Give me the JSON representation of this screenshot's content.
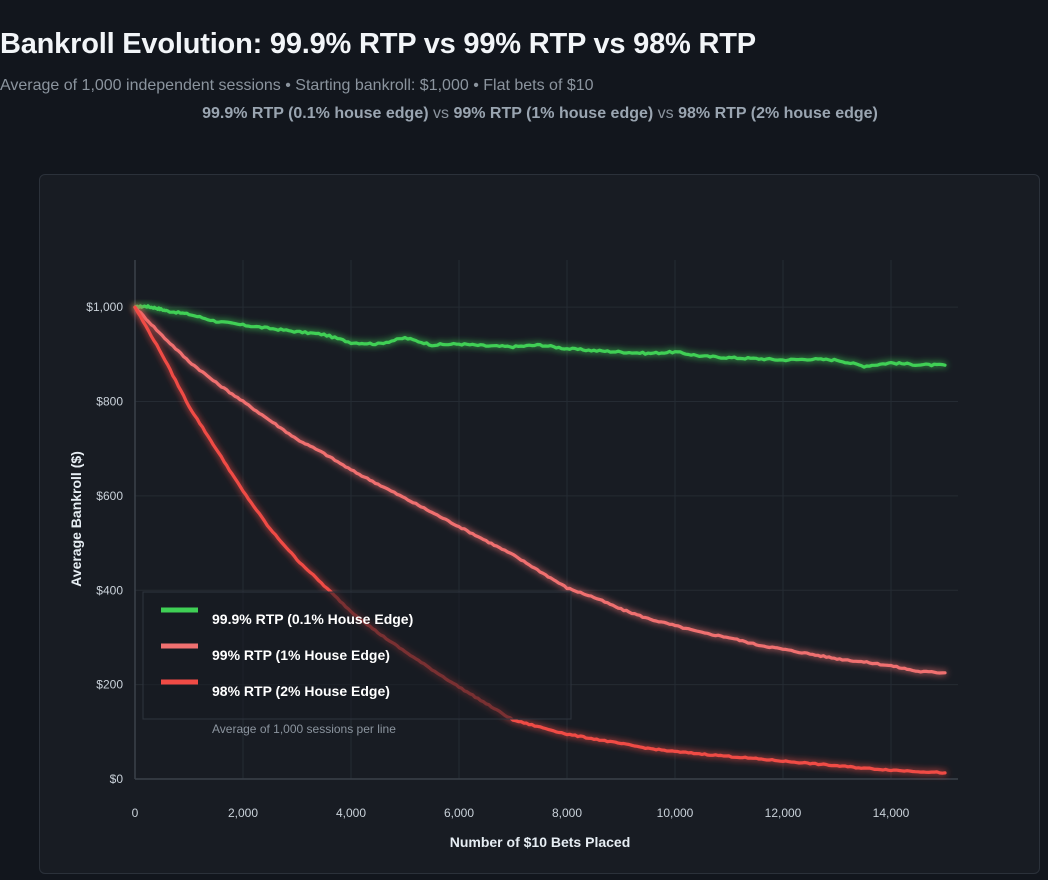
{
  "title": "Bankroll Evolution: 99.9% RTP vs 99% RTP vs 98% RTP",
  "subtitle": "Average of 1,000 independent sessions • Starting bankroll: $1,000 • Flat bets of $10",
  "comparison": {
    "a_bold": "99.9% RTP (0.1% house edge)",
    "sep1": " vs ",
    "b_bold": "99% RTP (1% house edge)",
    "sep2": " vs ",
    "c_bold": "98% RTP (2% house edge)"
  },
  "chart_data": {
    "type": "line",
    "xlabel": "Number of $10 Bets Placed",
    "ylabel": "Average Bankroll ($)",
    "xlim": [
      0,
      15000
    ],
    "ylim": [
      0,
      1100
    ],
    "x_ticks": [
      0,
      2000,
      4000,
      6000,
      8000,
      10000,
      12000,
      14000
    ],
    "x_tick_labels": [
      "0",
      "2,000",
      "4,000",
      "6,000",
      "8,000",
      "10,000",
      "12,000",
      "14,000"
    ],
    "y_ticks": [
      0,
      200,
      400,
      600,
      800,
      1000
    ],
    "y_tick_labels": [
      "$0",
      "$200",
      "$400",
      "$600",
      "$800",
      "$1,000"
    ],
    "grid": true,
    "legend_placement": "bottom-left",
    "legend_note": "Average of 1,000 sessions per line",
    "series": [
      {
        "name": "99.9% RTP  (0.1% House Edge)",
        "color": "#3fcf55",
        "x": [
          0,
          200,
          400,
          600,
          1000,
          1500,
          2000,
          2500,
          3000,
          3500,
          4000,
          4500,
          5000,
          5500,
          6000,
          6500,
          7000,
          7500,
          8000,
          8500,
          9000,
          9500,
          10000,
          10500,
          11000,
          11500,
          12000,
          12500,
          13000,
          13500,
          14000,
          14500,
          15000
        ],
        "y": [
          1000,
          1002,
          998,
          992,
          985,
          970,
          962,
          955,
          948,
          942,
          925,
          922,
          935,
          920,
          922,
          918,
          916,
          920,
          912,
          908,
          905,
          902,
          905,
          896,
          893,
          891,
          888,
          890,
          888,
          875,
          882,
          878,
          877
        ]
      },
      {
        "name": "99% RTP    (1% House Edge)",
        "color": "#f07070",
        "x": [
          0,
          500,
          1000,
          1500,
          2000,
          2500,
          3000,
          3500,
          4000,
          4500,
          5000,
          5500,
          6000,
          6500,
          7000,
          7500,
          8000,
          8500,
          9000,
          9500,
          10000,
          10500,
          11000,
          11500,
          12000,
          12500,
          13000,
          13500,
          14000,
          14500,
          15000
        ],
        "y": [
          1000,
          940,
          885,
          840,
          800,
          760,
          720,
          690,
          655,
          625,
          595,
          565,
          535,
          505,
          475,
          440,
          405,
          385,
          360,
          340,
          325,
          310,
          300,
          285,
          275,
          265,
          255,
          248,
          240,
          228,
          225
        ]
      },
      {
        "name": "98% RTP    (2% House Edge)",
        "color": "#f04b45",
        "x": [
          0,
          500,
          1000,
          1500,
          2000,
          2500,
          3000,
          3500,
          4000,
          4500,
          5000,
          5500,
          6000,
          6500,
          7000,
          7500,
          8000,
          8500,
          9000,
          9500,
          10000,
          10500,
          11000,
          11500,
          12000,
          12500,
          13000,
          13500,
          14000,
          14500,
          15000
        ],
        "y": [
          1000,
          900,
          790,
          700,
          610,
          530,
          465,
          410,
          355,
          310,
          270,
          232,
          195,
          160,
          125,
          110,
          95,
          85,
          75,
          65,
          58,
          53,
          48,
          43,
          38,
          33,
          28,
          23,
          19,
          16,
          13
        ]
      }
    ]
  }
}
